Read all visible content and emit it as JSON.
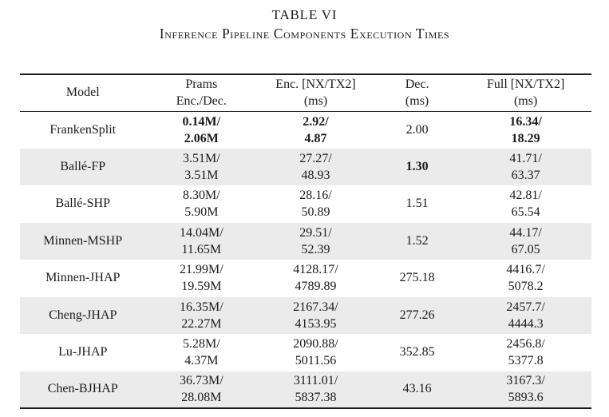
{
  "caption": {
    "number": "TABLE VI",
    "title": "Inference Pipeline Components Execution Times"
  },
  "colors": {
    "row_shade": "#ebebeb",
    "rule": "#1b1b1b",
    "text": "#1b1b1b",
    "background": "#ffffff"
  },
  "table": {
    "columns": [
      {
        "line1": "Model",
        "line2": ""
      },
      {
        "line1": "Prams",
        "line2": "Enc./Dec."
      },
      {
        "line1": "Enc. [NX/TX2]",
        "line2": "(ms)"
      },
      {
        "line1": "Dec.",
        "line2": "(ms)"
      },
      {
        "line1": "Full [NX/TX2]",
        "line2": "(ms)"
      }
    ],
    "rows": [
      {
        "model": "FrankenSplit",
        "params": {
          "lines": [
            "0.14M/",
            "2.06M"
          ],
          "bold": true
        },
        "enc": {
          "lines": [
            "2.92/",
            "4.87"
          ],
          "bold": true
        },
        "dec": {
          "value": "2.00",
          "bold": false
        },
        "full": {
          "lines": [
            "16.34/",
            "18.29"
          ],
          "bold": true
        },
        "shaded": false
      },
      {
        "model": "Ballé-FP",
        "params": {
          "lines": [
            "3.51M/",
            "3.51M"
          ],
          "bold": false
        },
        "enc": {
          "lines": [
            "27.27/",
            "48.93"
          ],
          "bold": false
        },
        "dec": {
          "value": "1.30",
          "bold": true
        },
        "full": {
          "lines": [
            "41.71/",
            "63.37"
          ],
          "bold": false
        },
        "shaded": true
      },
      {
        "model": "Ballé-SHP",
        "params": {
          "lines": [
            "8.30M/",
            "5.90M"
          ],
          "bold": false
        },
        "enc": {
          "lines": [
            "28.16/",
            "50.89"
          ],
          "bold": false
        },
        "dec": {
          "value": "1.51",
          "bold": false
        },
        "full": {
          "lines": [
            "42.81/",
            "65.54"
          ],
          "bold": false
        },
        "shaded": false
      },
      {
        "model": "Minnen-MSHP",
        "params": {
          "lines": [
            "14.04M/",
            "11.65M"
          ],
          "bold": false
        },
        "enc": {
          "lines": [
            "29.51/",
            "52.39"
          ],
          "bold": false
        },
        "dec": {
          "value": "1.52",
          "bold": false
        },
        "full": {
          "lines": [
            "44.17/",
            "67.05"
          ],
          "bold": false
        },
        "shaded": true
      },
      {
        "model": "Minnen-JHAP",
        "params": {
          "lines": [
            "21.99M/",
            "19.59M"
          ],
          "bold": false
        },
        "enc": {
          "lines": [
            "4128.17/",
            "4789.89"
          ],
          "bold": false
        },
        "dec": {
          "value": "275.18",
          "bold": false
        },
        "full": {
          "lines": [
            "4416.7/",
            "5078.2"
          ],
          "bold": false
        },
        "shaded": false
      },
      {
        "model": "Cheng-JHAP",
        "params": {
          "lines": [
            "16.35M/",
            "22.27M"
          ],
          "bold": false
        },
        "enc": {
          "lines": [
            "2167.34/",
            "4153.95"
          ],
          "bold": false
        },
        "dec": {
          "value": "277.26",
          "bold": false
        },
        "full": {
          "lines": [
            "2457.7/",
            "4444.3"
          ],
          "bold": false
        },
        "shaded": true
      },
      {
        "model": "Lu-JHAP",
        "params": {
          "lines": [
            "5.28M/",
            "4.37M"
          ],
          "bold": false
        },
        "enc": {
          "lines": [
            "2090.88/",
            "5011.56"
          ],
          "bold": false
        },
        "dec": {
          "value": "352.85",
          "bold": false
        },
        "full": {
          "lines": [
            "2456.8/",
            "5377.8"
          ],
          "bold": false
        },
        "shaded": false
      },
      {
        "model": "Chen-BJHAP",
        "params": {
          "lines": [
            "36.73M/",
            "28.08M"
          ],
          "bold": false
        },
        "enc": {
          "lines": [
            "3111.01/",
            "5837.38"
          ],
          "bold": false
        },
        "dec": {
          "value": "43.16",
          "bold": false
        },
        "full": {
          "lines": [
            "3167.3/",
            "5893.6"
          ],
          "bold": false
        },
        "shaded": true
      }
    ]
  }
}
